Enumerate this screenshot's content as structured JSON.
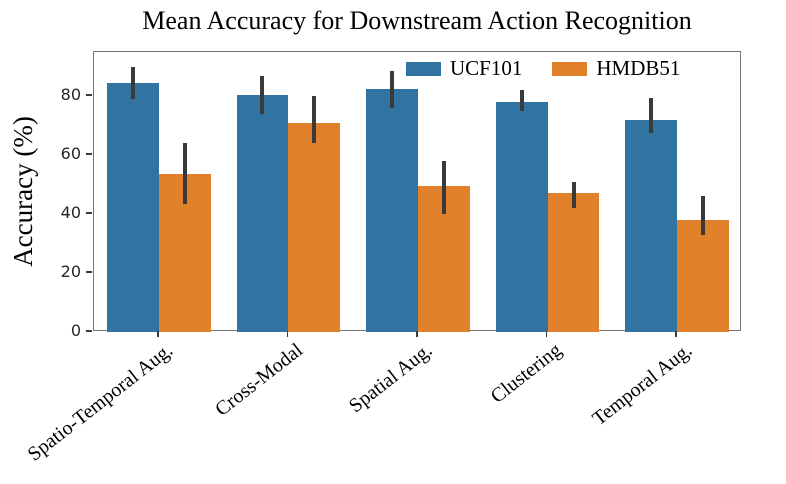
{
  "chart_data": {
    "type": "bar",
    "title": "Mean Accuracy for Downstream Action Recognition",
    "ylabel": "Accuracy (%)",
    "xlabel": "",
    "categories": [
      "Spatio-Temporal Aug.",
      "Cross-Modal",
      "Spatial Aug.",
      "Clustering",
      "Temporal Aug."
    ],
    "series": [
      {
        "name": "UCF101",
        "color": "#3274A1",
        "values": [
          84.5,
          80.5,
          82.5,
          78,
          72
        ],
        "err_low": [
          79,
          74,
          76,
          75,
          67.5
        ],
        "err_high": [
          90,
          87,
          88.5,
          82,
          79.5
        ]
      },
      {
        "name": "HMDB51",
        "color": "#E1812C",
        "values": [
          53.5,
          71,
          49.5,
          47,
          38
        ],
        "err_low": [
          43.5,
          64,
          40,
          42,
          33
        ],
        "err_high": [
          64,
          80,
          58,
          51,
          46
        ]
      }
    ],
    "ylim": [
      0,
      95
    ],
    "yticks": [
      0,
      20,
      40,
      60,
      80
    ],
    "grid": false,
    "legend_position": "upper-center-inside",
    "error_bar_color": "#3A3A3A",
    "spine_color": "#767676"
  }
}
